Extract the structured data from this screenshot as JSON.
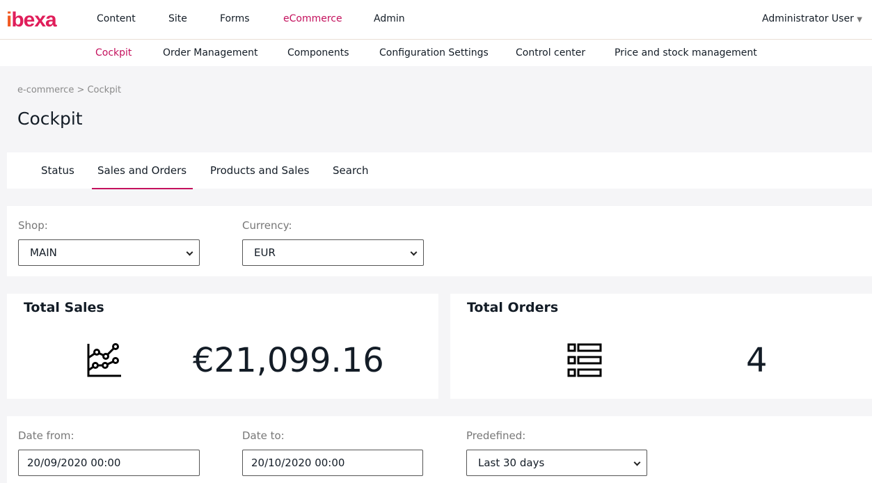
{
  "brand": {
    "logo": "ibexa",
    "accent": "#c4115d"
  },
  "main_nav": [
    "Content",
    "Site",
    "Forms",
    "eCommerce",
    "Admin"
  ],
  "user": "Administrator User",
  "sub_nav": [
    "Cockpit",
    "Order Management",
    "Components",
    "Configuration Settings",
    "Control center",
    "Price and stock management"
  ],
  "breadcrumb": "e-commerce > Cockpit",
  "title": "Cockpit",
  "tabs": [
    "Status",
    "Sales and Orders",
    "Products and Sales",
    "Search"
  ],
  "filters": {
    "shop_label": "Shop:",
    "shop": "MAIN",
    "currency_label": "Currency:",
    "currency": "EUR"
  },
  "total_sales": {
    "title": "Total Sales",
    "value": "€21,099.16",
    "icon": "line-chart-icon"
  },
  "total_orders": {
    "title": "Total Orders",
    "value": "4",
    "icon": "list-icon"
  },
  "dates": {
    "from_label": "Date from:",
    "from": "20/09/2020 00:00",
    "to_label": "Date to:",
    "to": "20/10/2020 00:00",
    "predefined_label": "Predefined:",
    "predefined": "Last 30 days"
  }
}
